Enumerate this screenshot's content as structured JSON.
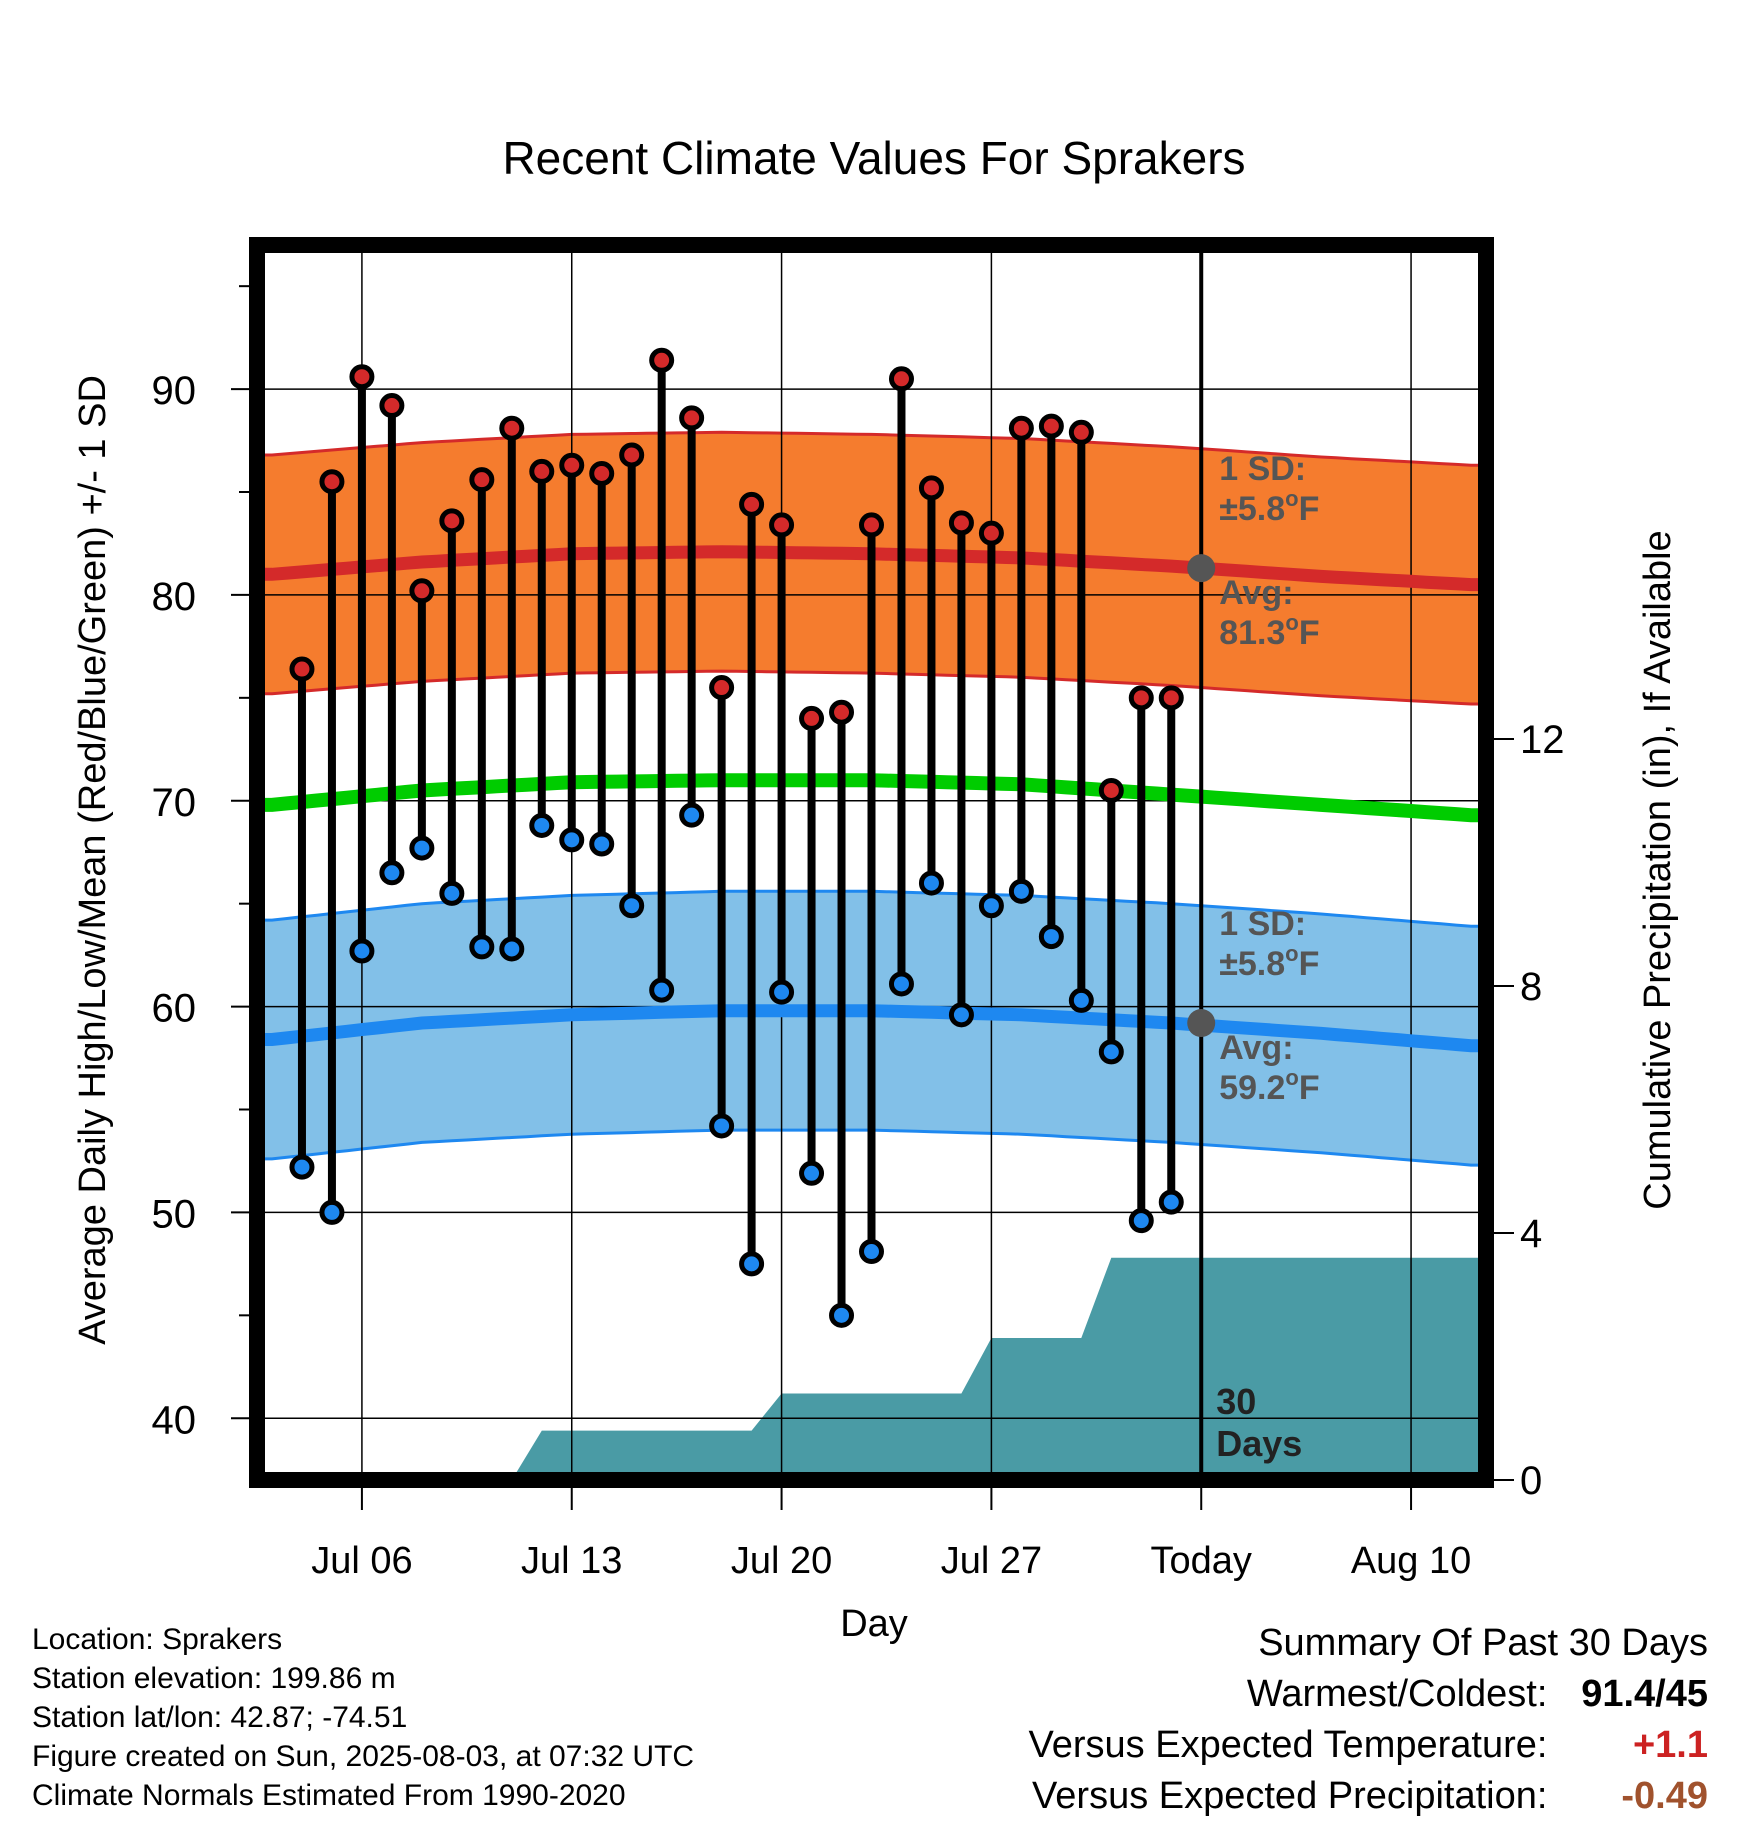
{
  "chart_data": {
    "type": "line",
    "title": "Recent Climate Values For Sprakers",
    "xlabel": "Day",
    "ylabel_left": "Average Daily High/Low/Mean (Red/Blue/Green) +/- 1 SD",
    "ylabel_right": "Cumulative Precipitation (in), If Available",
    "ylim_left": [
      37,
      97
    ],
    "ylim_right": [
      0,
      20
    ],
    "x_range_days": [
      -0.5,
      40.5
    ],
    "x_ticks": [
      {
        "day": 3,
        "label": "Jul 06"
      },
      {
        "day": 10,
        "label": "Jul 13"
      },
      {
        "day": 17,
        "label": "Jul 20"
      },
      {
        "day": 24,
        "label": "Jul 27"
      },
      {
        "day": 31,
        "label": "Today"
      },
      {
        "day": 38,
        "label": "Aug 10"
      }
    ],
    "y_ticks_left": [
      40,
      50,
      60,
      70,
      80,
      90
    ],
    "y_ticks_right": [
      0,
      4,
      8,
      12
    ],
    "today_day": 31,
    "days_label": [
      "30",
      "Days"
    ],
    "observed": {
      "high": [
        76.4,
        85.5,
        90.6,
        89.2,
        80.2,
        83.6,
        85.6,
        88.1,
        86.0,
        86.3,
        85.9,
        86.8,
        91.4,
        88.6,
        75.5,
        84.4,
        83.4,
        74.0,
        74.3,
        83.4,
        90.5,
        85.2,
        83.5,
        83.0,
        88.1,
        88.2,
        87.9,
        70.5,
        75.0,
        75.0
      ],
      "low": [
        52.2,
        50.0,
        62.7,
        66.5,
        67.7,
        65.5,
        62.9,
        62.8,
        68.8,
        68.1,
        67.9,
        64.9,
        60.8,
        69.3,
        54.2,
        47.5,
        60.7,
        51.9,
        45.0,
        48.1,
        61.1,
        66.0,
        59.6,
        64.9,
        65.6,
        63.4,
        60.3,
        57.8,
        49.6,
        50.5
      ],
      "start_day": 1
    },
    "normals": {
      "days": [
        0,
        5,
        10,
        15,
        20,
        25,
        30,
        35,
        40
      ],
      "high_avg": [
        81.0,
        81.6,
        82.0,
        82.1,
        82.0,
        81.8,
        81.4,
        80.9,
        80.5
      ],
      "high_sd": 5.8,
      "low_avg": [
        58.4,
        59.2,
        59.6,
        59.8,
        59.8,
        59.6,
        59.2,
        58.7,
        58.1
      ],
      "low_sd": 5.8,
      "mean_avg": [
        69.8,
        70.5,
        70.9,
        71.0,
        71.0,
        70.8,
        70.3,
        69.8,
        69.3
      ]
    },
    "today_markers": {
      "high": {
        "value": 81.3,
        "sd_label": "1 SD:",
        "sd_text": "±5.8",
        "avg_label": "Avg:",
        "avg_text": "81.3",
        "unit": "°F"
      },
      "low": {
        "value": 59.2,
        "sd_label": "1 SD:",
        "sd_text": "±5.8",
        "avg_label": "Avg:",
        "avg_text": "59.2",
        "unit": "°F"
      }
    },
    "precip_cumulative": {
      "x": [
        0,
        8,
        9,
        16,
        17,
        23,
        24,
        27,
        28,
        40.5
      ],
      "y": [
        0,
        0,
        0.8,
        0.8,
        1.4,
        1.4,
        2.3,
        2.3,
        3.6,
        3.6
      ]
    },
    "grid": true,
    "colors": {
      "high_band": "#f57c2e",
      "high_line": "#d42a2a",
      "low_band": "#82c0e8",
      "low_line": "#1e88f0",
      "mean_line": "#00cc00",
      "precip": "#4a9ba5",
      "marker_text": "#555555"
    }
  },
  "info": {
    "location": "Location: Sprakers",
    "elevation": "Station elevation: 199.86 m",
    "latlon": "Station lat/lon: 42.87; -74.51",
    "created": "Figure created on Sun, 2025-08-03, at 07:32 UTC",
    "normals": "Climate Normals Estimated From 1990-2020"
  },
  "summary": {
    "title": "Summary Of Past 30 Days",
    "warmest_label": "Warmest/Coldest:",
    "warmest_value": "91.4/45",
    "temp_label": "Versus Expected Temperature:",
    "temp_value": "+1.1",
    "temp_color": "#cc2222",
    "precip_label": "Versus Expected Precipitation:",
    "precip_value": "-0.49",
    "precip_color": "#a0522d"
  }
}
